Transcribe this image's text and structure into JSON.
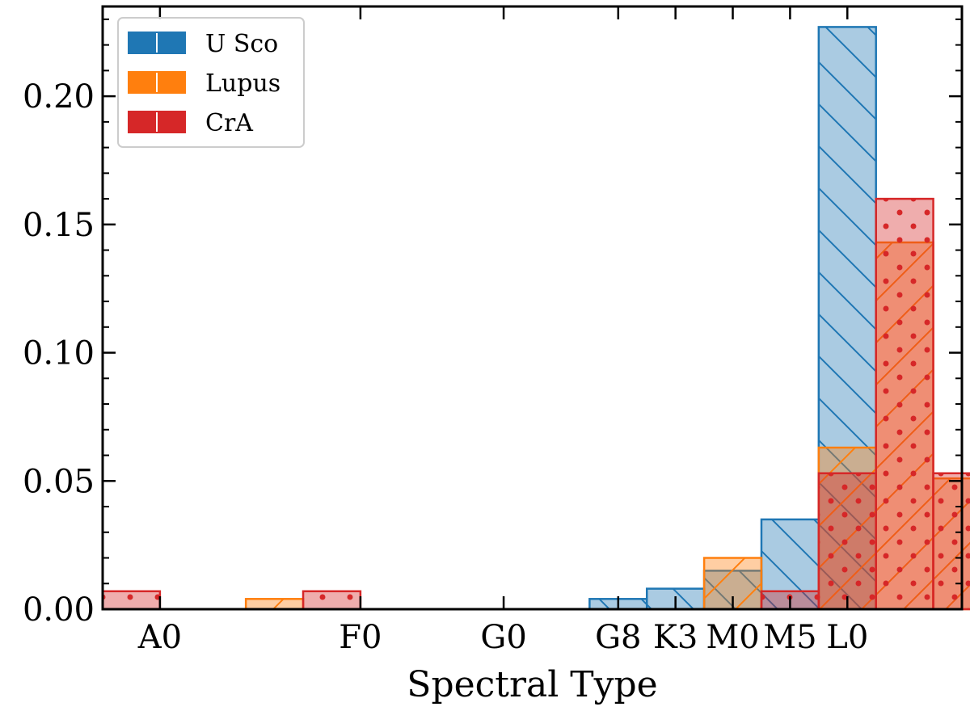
{
  "chart_data": {
    "type": "bar",
    "title": "",
    "xlabel": "Spectral Type",
    "ylabel": "",
    "ylim": [
      0,
      0.235
    ],
    "xlim": [
      0,
      15
    ],
    "x_ticks": [
      {
        "label": "A0",
        "value": 1
      },
      {
        "label": "F0",
        "value": 4.5
      },
      {
        "label": "G0",
        "value": 7
      },
      {
        "label": "G8",
        "value": 9
      },
      {
        "label": "K3",
        "value": 10
      },
      {
        "label": "M0",
        "value": 11
      },
      {
        "label": "M5",
        "value": 12
      },
      {
        "label": "L0",
        "value": 13
      }
    ],
    "y_ticks": [
      {
        "label": "0.00",
        "value": 0
      },
      {
        "label": "0.05",
        "value": 0.05
      },
      {
        "label": "0.10",
        "value": 0.1
      },
      {
        "label": "0.15",
        "value": 0.15
      },
      {
        "label": "0.20",
        "value": 0.2
      }
    ],
    "legend_position": "top-left",
    "series": [
      {
        "name": "U Sco",
        "color": "#1f77b4",
        "hatch": "backslash",
        "bins": [
          {
            "x0": 8.5,
            "x1": 9.5,
            "value": 0.004
          },
          {
            "x0": 9.5,
            "x1": 10.5,
            "value": 0.008
          },
          {
            "x0": 10.5,
            "x1": 11.5,
            "value": 0.015
          },
          {
            "x0": 11.5,
            "x1": 12.5,
            "value": 0.035
          },
          {
            "x0": 12.5,
            "x1": 13.5,
            "value": 0.227
          }
        ]
      },
      {
        "name": "Lupus",
        "color": "#ff7f0e",
        "hatch": "slash",
        "bins": [
          {
            "x0": 2.5,
            "x1": 3.5,
            "value": 0.004
          },
          {
            "x0": 10.5,
            "x1": 11.5,
            "value": 0.02
          },
          {
            "x0": 12.5,
            "x1": 13.5,
            "value": 0.063
          },
          {
            "x0": 13.5,
            "x1": 14.5,
            "value": 0.143
          },
          {
            "x0": 14.5,
            "x1": 15.5,
            "value": 0.051
          }
        ]
      },
      {
        "name": "CrA",
        "color": "#d62728",
        "hatch": "dots",
        "bins": [
          {
            "x0": 0,
            "x1": 1,
            "value": 0.007
          },
          {
            "x0": 3.5,
            "x1": 4.5,
            "value": 0.007
          },
          {
            "x0": 11.5,
            "x1": 12.5,
            "value": 0.007
          },
          {
            "x0": 12.5,
            "x1": 13.5,
            "value": 0.053
          },
          {
            "x0": 13.5,
            "x1": 14.5,
            "value": 0.16
          },
          {
            "x0": 14.5,
            "x1": 15.5,
            "value": 0.053
          }
        ]
      }
    ]
  }
}
